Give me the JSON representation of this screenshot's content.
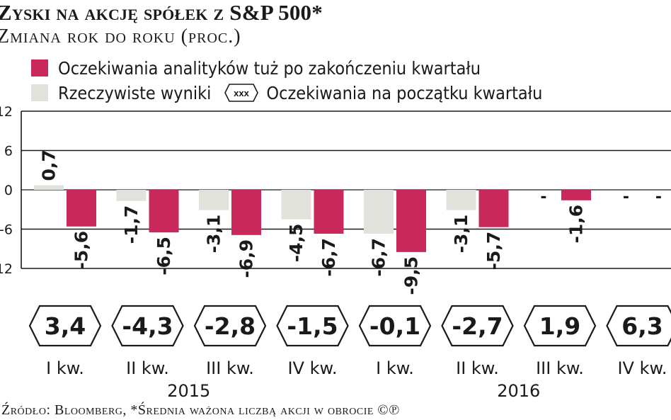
{
  "title": "Zyski na akcję spółek z S&P 500*",
  "subtitle": "Zmiana rok do roku (proc.)",
  "legend": {
    "expected_label": "Oczekiwania analityków tuż po zakończeniu kwartału",
    "actual_label": "Rzeczywiste wyniki",
    "start_symbol": "xxx",
    "start_label": "Oczekiwania na początku kwartału"
  },
  "colors": {
    "expected": "#c8295a",
    "actual": "#e2e2dc"
  },
  "chart_data": {
    "type": "bar",
    "categories": [
      "I kw.",
      "II kw.",
      "III kw.",
      "IV kw.",
      "I kw.",
      "II kw.",
      "III kw.",
      "IV kw."
    ],
    "years": [
      {
        "label": "2015",
        "quarters": [
          0,
          1,
          2,
          3
        ]
      },
      {
        "label": "2016",
        "quarters": [
          4,
          5,
          6,
          7
        ]
      }
    ],
    "series": [
      {
        "name": "Rzeczywiste wyniki",
        "values": [
          0.7,
          -1.7,
          -3.1,
          -4.5,
          -6.7,
          -3.1,
          null,
          null
        ],
        "labels": [
          "0,7",
          "-1,7",
          "-3,1",
          "-4,5",
          "-6,7",
          "-3,1",
          "-",
          "-"
        ]
      },
      {
        "name": "Oczekiwania analityków tuż po zakończeniu kwartału",
        "values": [
          -5.6,
          -6.5,
          -6.9,
          -6.7,
          -9.5,
          -5.7,
          -1.6,
          null
        ],
        "labels": [
          "-5,6",
          "-6,5",
          "-6,9",
          "-6,7",
          "-9,5",
          "-5,7",
          "-1,6",
          "-"
        ]
      }
    ],
    "start_of_quarter_expectations": {
      "values": [
        3.4,
        -4.3,
        -2.8,
        -1.5,
        -0.1,
        -2.7,
        1.9,
        6.3
      ],
      "labels": [
        "3,4",
        "-4,3",
        "-2,8",
        "-1,5",
        "-0,1",
        "-2,7",
        "1,9",
        "6,3"
      ]
    },
    "y_ticks": [
      "12",
      "6",
      "0",
      "-6",
      "-12"
    ],
    "y_tick_values": [
      12,
      6,
      0,
      -6,
      -12
    ],
    "ylim": [
      -12,
      12
    ],
    "grid": true
  },
  "footer": "Źródło: Bloomberg, *Średnia ważona liczbą akcji w obrocie ©℗"
}
